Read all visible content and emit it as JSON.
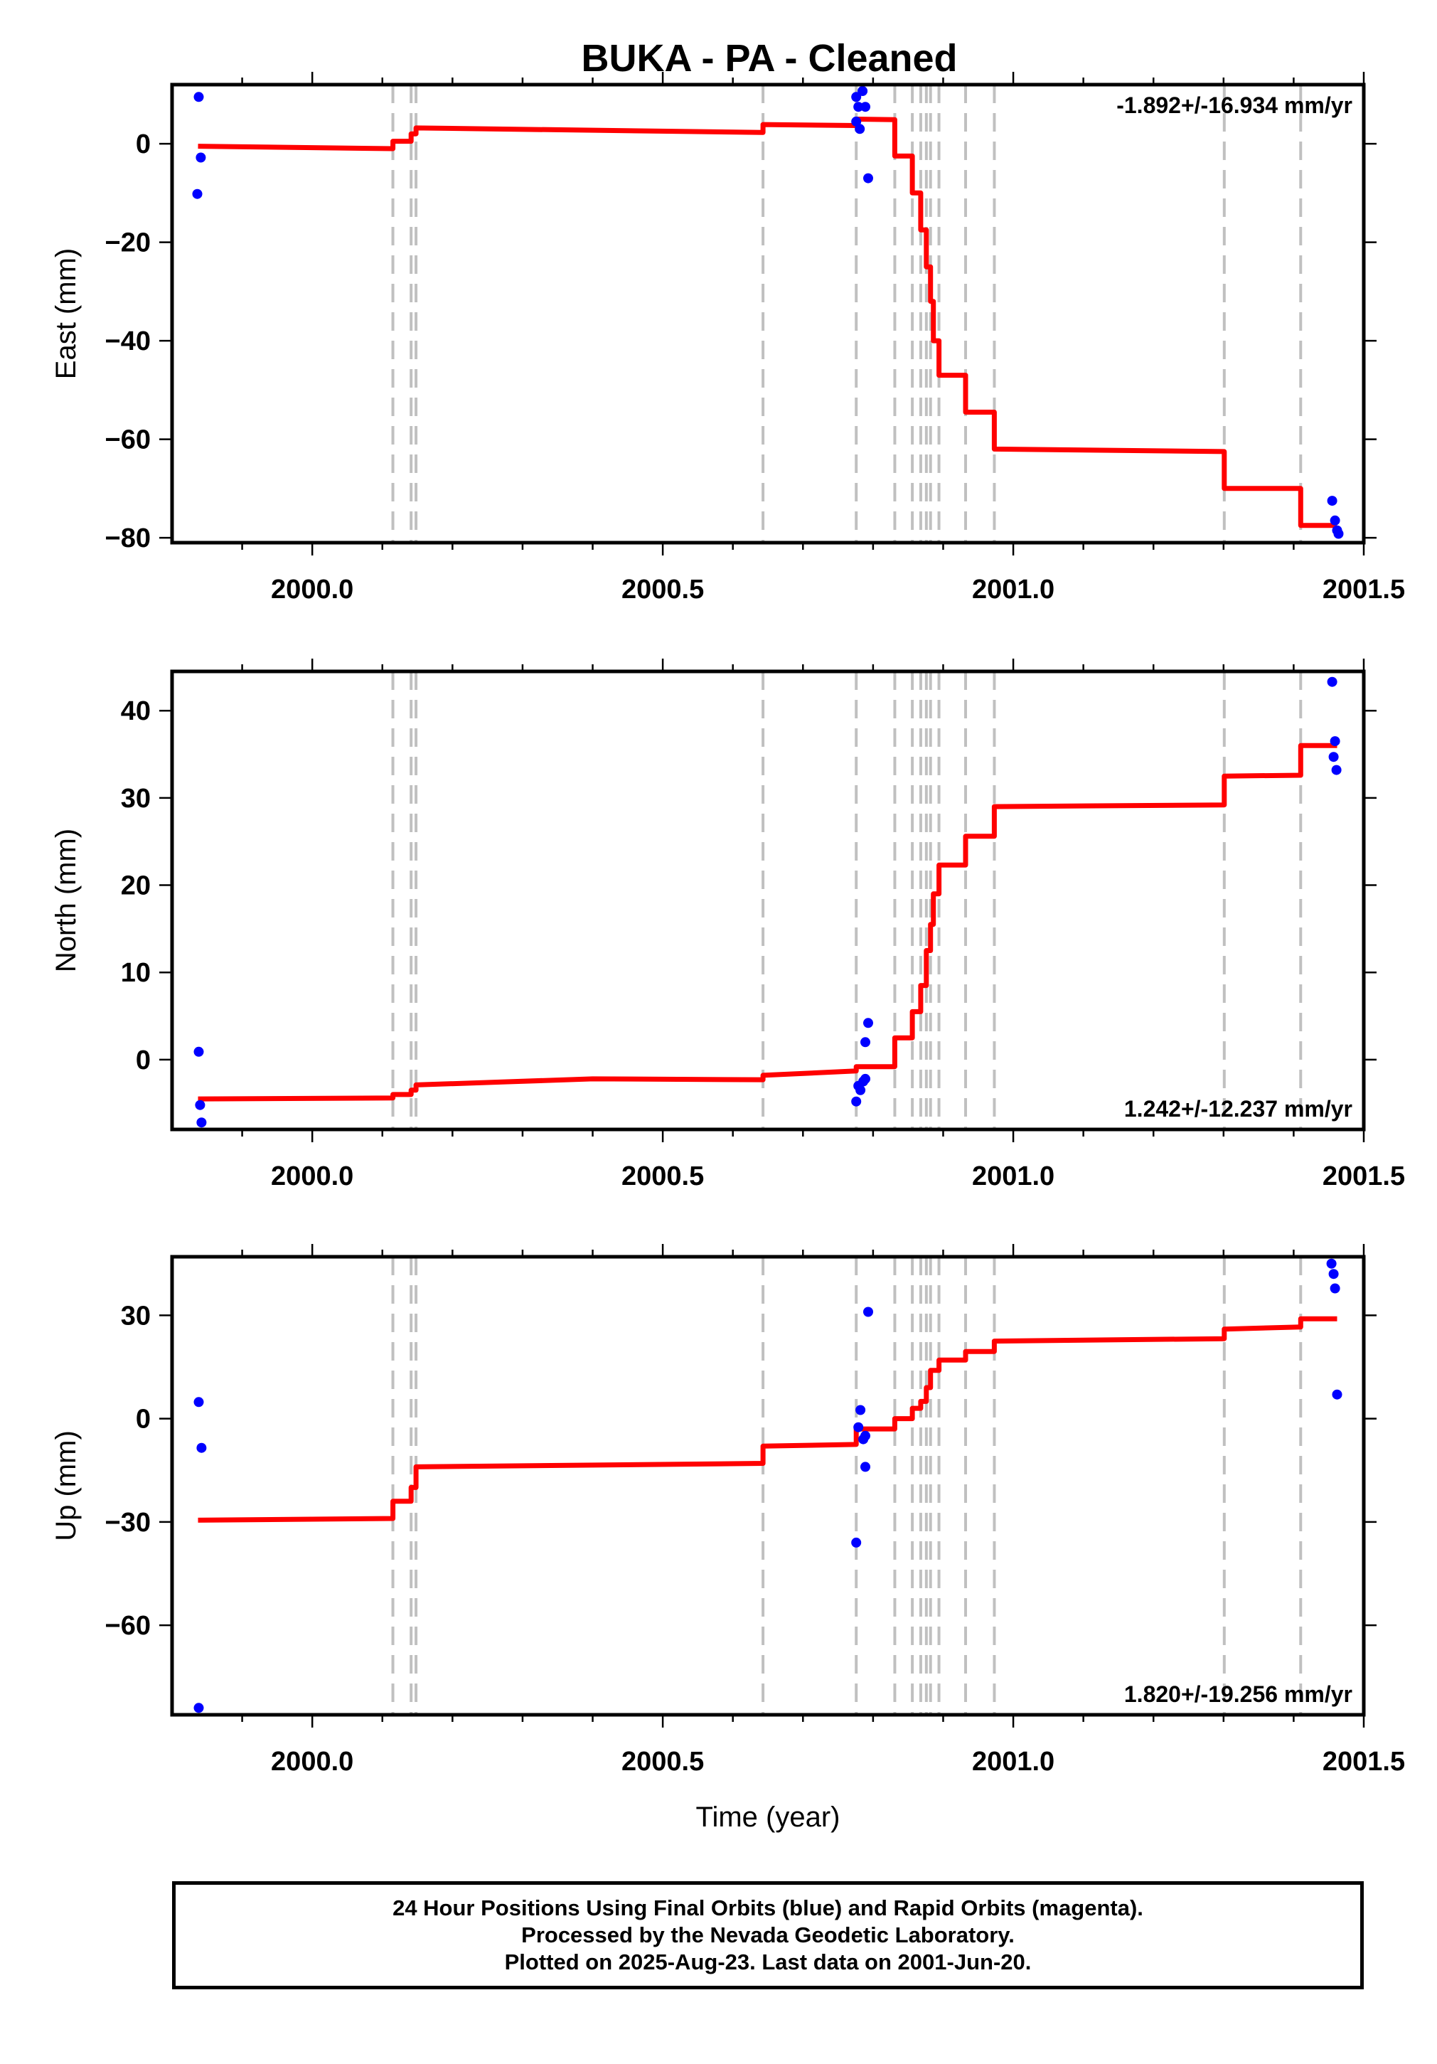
{
  "title": "BUKA  - PA - Cleaned",
  "colors": {
    "model_line": "#ff0000",
    "final_orbit_points": "#0000ff",
    "offset_lines": "#c0c0c0",
    "frame": "#000000"
  },
  "footer": {
    "line1": "24 Hour Positions Using Final Orbits (blue) and Rapid Orbits (magenta).",
    "line2": "Processed by the Nevada Geodetic Laboratory.",
    "line3": "Plotted on 2025-Aug-23. Last data on 2001-Jun-20."
  },
  "chart_data": [
    {
      "type": "line",
      "ylabel": "East (mm)",
      "xlabel": "",
      "xlim": [
        1999.8,
        2001.5
      ],
      "ylim": [
        -81,
        12
      ],
      "x_ticks": [
        2000.0,
        2000.5,
        2001.0,
        2001.5
      ],
      "x_tick_labels": [
        "2000.0",
        "2000.5",
        "2001.0",
        "2001.5"
      ],
      "y_ticks": [
        0,
        -20,
        -40,
        -60,
        -80
      ],
      "y_tick_labels": [
        "0",
        "−20",
        "−40",
        "−60",
        "−80"
      ],
      "rate_label": "-1.892+/-16.934 mm/yr",
      "rate_position": "top-right",
      "offset_epochs": [
        2000.115,
        2000.141,
        2000.148,
        2000.643,
        2000.776,
        2000.831,
        2000.856,
        2000.868,
        2000.876,
        2000.882,
        2000.894,
        2000.932,
        2000.973,
        2001.301,
        2001.41
      ],
      "model": [
        [
          1999.837,
          -0.5
        ],
        [
          2000.115,
          -1.0
        ],
        [
          2000.115,
          0.5
        ],
        [
          2000.141,
          0.5
        ],
        [
          2000.141,
          2.0
        ],
        [
          2000.148,
          2.0
        ],
        [
          2000.148,
          3.2
        ],
        [
          2000.643,
          2.3
        ],
        [
          2000.643,
          3.9
        ],
        [
          2000.776,
          3.7
        ],
        [
          2000.776,
          5.0
        ],
        [
          2000.831,
          4.9
        ],
        [
          2000.831,
          -2.5
        ],
        [
          2000.856,
          -2.5
        ],
        [
          2000.856,
          -10.0
        ],
        [
          2000.868,
          -10.0
        ],
        [
          2000.868,
          -17.5
        ],
        [
          2000.876,
          -17.5
        ],
        [
          2000.876,
          -25.0
        ],
        [
          2000.882,
          -25.0
        ],
        [
          2000.882,
          -32.0
        ],
        [
          2000.886,
          -32.0
        ],
        [
          2000.886,
          -40.0
        ],
        [
          2000.894,
          -40.0
        ],
        [
          2000.894,
          -47.0
        ],
        [
          2000.932,
          -47.0
        ],
        [
          2000.932,
          -54.5
        ],
        [
          2000.973,
          -54.5
        ],
        [
          2000.973,
          -62.0
        ],
        [
          2001.301,
          -62.5
        ],
        [
          2001.301,
          -70.0
        ],
        [
          2001.41,
          -70.0
        ],
        [
          2001.41,
          -77.5
        ],
        [
          2001.462,
          -77.5
        ]
      ],
      "points": [
        [
          1999.838,
          9.5
        ],
        [
          1999.841,
          -2.8
        ],
        [
          1999.836,
          -10.2
        ],
        [
          2000.776,
          9.5
        ],
        [
          2000.779,
          7.5
        ],
        [
          2000.785,
          10.7
        ],
        [
          2000.789,
          7.5
        ],
        [
          2000.781,
          3.0
        ],
        [
          2000.776,
          4.5
        ],
        [
          2000.793,
          -7.0
        ],
        [
          2001.455,
          -72.5
        ],
        [
          2001.459,
          -76.5
        ],
        [
          2001.462,
          -78.5
        ],
        [
          2001.464,
          -79.2
        ]
      ]
    },
    {
      "type": "line",
      "ylabel": "North (mm)",
      "xlabel": "",
      "xlim": [
        1999.8,
        2001.5
      ],
      "ylim": [
        -8,
        44.5
      ],
      "x_ticks": [
        2000.0,
        2000.5,
        2001.0,
        2001.5
      ],
      "x_tick_labels": [
        "2000.0",
        "2000.5",
        "2001.0",
        "2001.5"
      ],
      "y_ticks": [
        0,
        10,
        20,
        30,
        40
      ],
      "y_tick_labels": [
        "0",
        "10",
        "20",
        "30",
        "40"
      ],
      "rate_label": "1.242+/-12.237 mm/yr",
      "rate_position": "bottom-right",
      "offset_epochs": [
        2000.115,
        2000.141,
        2000.148,
        2000.643,
        2000.776,
        2000.831,
        2000.856,
        2000.868,
        2000.876,
        2000.882,
        2000.894,
        2000.932,
        2000.973,
        2001.301,
        2001.41
      ],
      "model": [
        [
          1999.837,
          -4.5
        ],
        [
          2000.115,
          -4.4
        ],
        [
          2000.115,
          -4.0
        ],
        [
          2000.141,
          -4.0
        ],
        [
          2000.141,
          -3.5
        ],
        [
          2000.148,
          -3.5
        ],
        [
          2000.148,
          -2.9
        ],
        [
          2000.4,
          -2.2
        ],
        [
          2000.643,
          -2.3
        ],
        [
          2000.643,
          -1.8
        ],
        [
          2000.776,
          -1.3
        ],
        [
          2000.776,
          -0.8
        ],
        [
          2000.831,
          -0.8
        ],
        [
          2000.831,
          2.5
        ],
        [
          2000.856,
          2.5
        ],
        [
          2000.856,
          5.5
        ],
        [
          2000.868,
          5.5
        ],
        [
          2000.868,
          8.5
        ],
        [
          2000.876,
          8.5
        ],
        [
          2000.876,
          12.5
        ],
        [
          2000.882,
          12.5
        ],
        [
          2000.882,
          15.5
        ],
        [
          2000.886,
          15.5
        ],
        [
          2000.886,
          19.0
        ],
        [
          2000.894,
          19.0
        ],
        [
          2000.894,
          22.3
        ],
        [
          2000.932,
          22.3
        ],
        [
          2000.932,
          25.6
        ],
        [
          2000.973,
          25.6
        ],
        [
          2000.973,
          29.0
        ],
        [
          2001.301,
          29.2
        ],
        [
          2001.301,
          32.5
        ],
        [
          2001.41,
          32.6
        ],
        [
          2001.41,
          36.0
        ],
        [
          2001.462,
          36.0
        ]
      ],
      "points": [
        [
          1999.838,
          0.9
        ],
        [
          1999.84,
          -5.2
        ],
        [
          1999.842,
          -7.2
        ],
        [
          2000.776,
          -4.8
        ],
        [
          2000.779,
          -3.0
        ],
        [
          2000.782,
          -3.5
        ],
        [
          2000.786,
          -2.5
        ],
        [
          2000.789,
          -2.2
        ],
        [
          2000.789,
          2.0
        ],
        [
          2000.793,
          4.2
        ],
        [
          2001.455,
          43.3
        ],
        [
          2001.457,
          34.7
        ],
        [
          2001.459,
          36.5
        ],
        [
          2001.461,
          33.2
        ]
      ]
    },
    {
      "type": "line",
      "ylabel": "Up (mm)",
      "xlabel": "Time (year)",
      "xlim": [
        1999.8,
        2001.5
      ],
      "ylim": [
        -86,
        47
      ],
      "x_ticks": [
        2000.0,
        2000.5,
        2001.0,
        2001.5
      ],
      "x_tick_labels": [
        "2000.0",
        "2000.5",
        "2001.0",
        "2001.5"
      ],
      "y_ticks": [
        30,
        0,
        -30,
        -60
      ],
      "y_tick_labels": [
        "30",
        "0",
        "−30",
        "−60"
      ],
      "rate_label": "1.820+/-19.256 mm/yr",
      "rate_position": "bottom-right",
      "offset_epochs": [
        2000.115,
        2000.141,
        2000.148,
        2000.643,
        2000.776,
        2000.831,
        2000.856,
        2000.868,
        2000.876,
        2000.882,
        2000.894,
        2000.932,
        2000.973,
        2001.301,
        2001.41
      ],
      "model": [
        [
          1999.837,
          -29.5
        ],
        [
          2000.115,
          -29.0
        ],
        [
          2000.115,
          -24.0
        ],
        [
          2000.141,
          -24.0
        ],
        [
          2000.141,
          -20.0
        ],
        [
          2000.148,
          -20.0
        ],
        [
          2000.148,
          -14.0
        ],
        [
          2000.643,
          -13.0
        ],
        [
          2000.643,
          -8.0
        ],
        [
          2000.776,
          -7.5
        ],
        [
          2000.776,
          -3.0
        ],
        [
          2000.831,
          -3.0
        ],
        [
          2000.831,
          0.0
        ],
        [
          2000.856,
          0.0
        ],
        [
          2000.856,
          3.0
        ],
        [
          2000.868,
          3.0
        ],
        [
          2000.868,
          5.0
        ],
        [
          2000.876,
          5.0
        ],
        [
          2000.876,
          9.0
        ],
        [
          2000.882,
          9.0
        ],
        [
          2000.882,
          14.0
        ],
        [
          2000.894,
          14.0
        ],
        [
          2000.894,
          17.0
        ],
        [
          2000.932,
          17.0
        ],
        [
          2000.932,
          19.5
        ],
        [
          2000.973,
          19.5
        ],
        [
          2000.973,
          22.5
        ],
        [
          2001.301,
          23.2
        ],
        [
          2001.301,
          26.0
        ],
        [
          2001.41,
          26.6
        ],
        [
          2001.41,
          29.0
        ],
        [
          2001.462,
          29.0
        ]
      ],
      "points": [
        [
          1999.838,
          4.8
        ],
        [
          1999.842,
          -8.5
        ],
        [
          1999.838,
          -84.0
        ],
        [
          2000.776,
          -36.0
        ],
        [
          2000.779,
          -2.5
        ],
        [
          2000.782,
          2.5
        ],
        [
          2000.786,
          -6.0
        ],
        [
          2000.789,
          -14.0
        ],
        [
          2000.789,
          -5.0
        ],
        [
          2000.793,
          31.0
        ],
        [
          2001.454,
          45.0
        ],
        [
          2001.457,
          42.0
        ],
        [
          2001.459,
          37.8
        ],
        [
          2001.462,
          7.0
        ]
      ]
    }
  ]
}
